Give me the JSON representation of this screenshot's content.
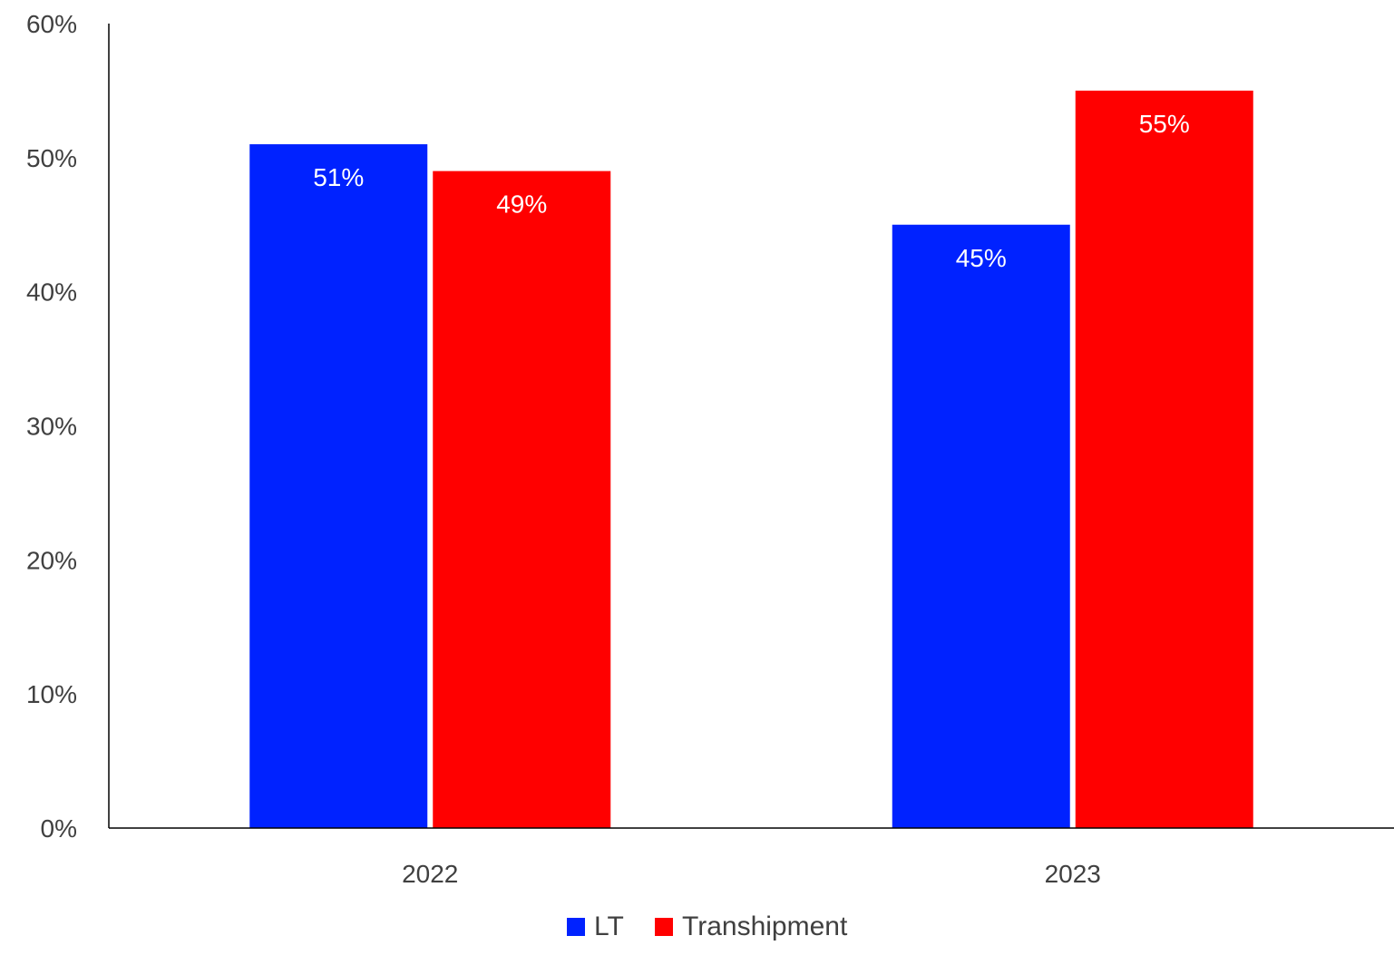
{
  "chart_data": {
    "type": "bar",
    "categories": [
      "2022",
      "2023"
    ],
    "series": [
      {
        "name": "LT",
        "color": "#0022ff",
        "values": [
          51,
          45
        ],
        "labels": [
          "51%",
          "45%"
        ]
      },
      {
        "name": "Transhipment",
        "color": "#ff0000",
        "values": [
          49,
          55
        ],
        "labels": [
          "49%",
          "55%"
        ]
      }
    ],
    "ylim": [
      0,
      60
    ],
    "yticks": [
      0,
      10,
      20,
      30,
      40,
      50,
      60
    ],
    "ytick_labels": [
      "0%",
      "10%",
      "20%",
      "30%",
      "40%",
      "50%",
      "60%"
    ],
    "y_unit": "%",
    "grid": false,
    "legend_position": "bottom-center",
    "data_label_color": "#ffffff",
    "axis_color": "#000000",
    "tick_label_color": "#404040"
  }
}
